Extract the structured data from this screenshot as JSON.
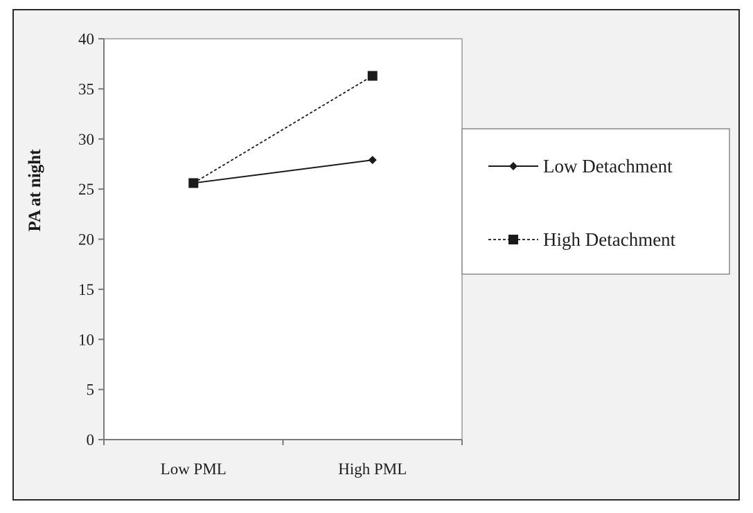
{
  "chart_data": {
    "type": "line",
    "title": "",
    "xlabel": "",
    "ylabel": "PA at night",
    "categories": [
      "Low PML",
      "High PML"
    ],
    "ylim": [
      0,
      40
    ],
    "yticks": [
      0,
      5,
      10,
      15,
      20,
      25,
      30,
      35,
      40
    ],
    "grid": false,
    "legend_position": "right",
    "series": [
      {
        "name": "Low Detachment",
        "values": [
          25.6,
          27.9
        ],
        "marker": "diamond",
        "line_style": "solid",
        "color": "#1a1a1a"
      },
      {
        "name": "High Detachment",
        "values": [
          25.6,
          36.3
        ],
        "marker": "square",
        "line_style": "dashed",
        "color": "#1a1a1a"
      }
    ]
  }
}
